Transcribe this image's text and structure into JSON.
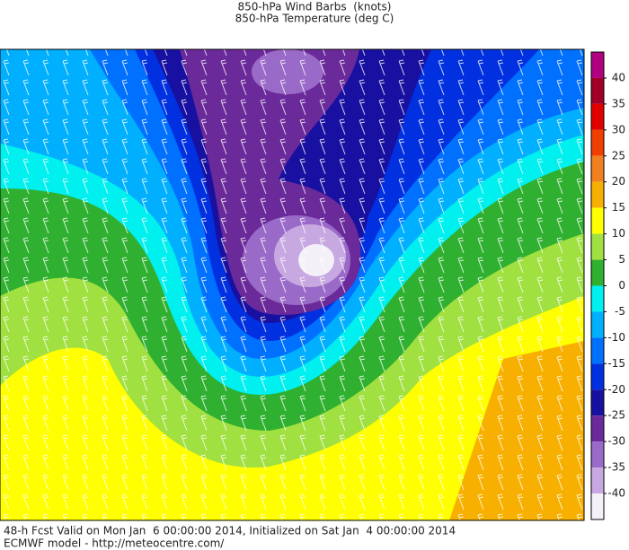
{
  "header": {
    "line1": "850-hPa Wind Barbs  (knots)",
    "line2": "850-hPa Temperature (deg C)"
  },
  "colorbar": {
    "ylim": [
      -45,
      45
    ],
    "ticks": [
      40,
      35,
      30,
      25,
      20,
      15,
      10,
      5,
      0,
      -5,
      -10,
      -15,
      -20,
      -25,
      -30,
      -35,
      -40
    ],
    "colors": [
      "#b0007f",
      "#a00028",
      "#e00000",
      "#f04000",
      "#f08020",
      "#f8b000",
      "#ffff00",
      "#a0e040",
      "#30b030",
      "#00f0f0",
      "#00b0ff",
      "#0070ff",
      "#0030e0",
      "#1810a0",
      "#6a2a9a",
      "#9a6ac8",
      "#c8a8e0",
      "#f4f0f8"
    ]
  },
  "footer": {
    "line1": "48-h Fcst Valid on Mon Jan  6 00:00:00 2014, Initialized on Sat Jan  4 00:00:00 2014",
    "line2": "ECMWF model - http://meteocentre.com/"
  }
}
